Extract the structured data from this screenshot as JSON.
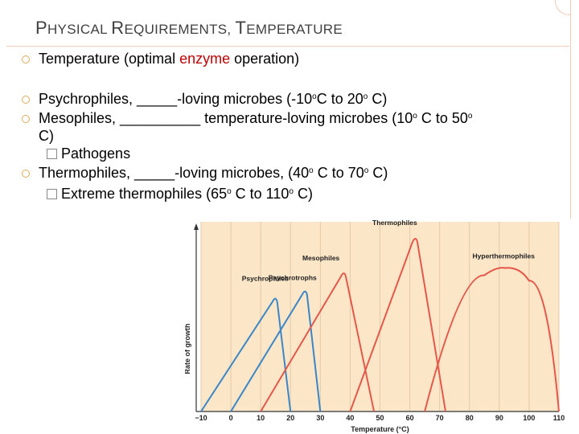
{
  "slide": {
    "title_parts": [
      {
        "cap": "P",
        "rest": "HYSICAL "
      },
      {
        "cap": "R",
        "rest": "EQUIREMENTS, "
      },
      {
        "cap": "T",
        "rest": "EMPERATURE"
      }
    ]
  },
  "bullets": {
    "b1": {
      "before": "Temperature (optimal ",
      "highlight": "enzyme",
      "after": " operation)"
    },
    "b2": {
      "text": "Psychrophiles, _____-loving microbes (-10",
      "sup": "o",
      "tail": "C to 20",
      "sup2": "o",
      "end": " C)"
    },
    "b3": {
      "line1": "Mesophiles, __________ temperature-loving microbes (10",
      "sup": "o",
      "mid": " C to 50",
      "sup2": "o",
      "line2": "C)"
    },
    "b3_sub": "Pathogens",
    "b4": {
      "text": "Thermophiles, _____-loving microbes, (40",
      "sup": "o",
      "mid": " C to 70",
      "sup2": "o",
      "end": " C)"
    },
    "b4_sub": {
      "text": "Extreme thermophiles (65",
      "sup": "o",
      "mid": " C to 110",
      "sup2": "o",
      "end": " C)"
    }
  },
  "colors": {
    "accent_marker": "#e0a85c",
    "highlight": "#c00000",
    "series": "#e5574a",
    "psychro": "#3a86c8"
  },
  "chart_data": {
    "type": "line",
    "xlabel": "Temperature (°C)",
    "ylabel": "Rate of growth",
    "x_ticks": [
      -10,
      0,
      10,
      20,
      30,
      40,
      50,
      60,
      70,
      80,
      90,
      100,
      110
    ],
    "xlim": [
      -10,
      110
    ],
    "ylim": [
      0,
      1
    ],
    "series": [
      {
        "name": "Psychrophiles",
        "x": [
          -10,
          15,
          20
        ],
        "y": [
          0,
          0.63,
          0
        ]
      },
      {
        "name": "Psychrotrophs",
        "x": [
          0,
          25,
          30
        ],
        "y": [
          0,
          0.67,
          0
        ]
      },
      {
        "name": "Mesophiles",
        "x": [
          10,
          38,
          48
        ],
        "y": [
          0,
          0.77,
          0
        ]
      },
      {
        "name": "Thermophiles",
        "x": [
          40,
          62,
          72
        ],
        "y": [
          0,
          0.96,
          0
        ]
      },
      {
        "name": "Hyperthermophiles",
        "x": [
          65,
          85,
          92,
          100,
          110
        ],
        "y": [
          0,
          0.75,
          0.79,
          0.72,
          0
        ]
      }
    ]
  }
}
